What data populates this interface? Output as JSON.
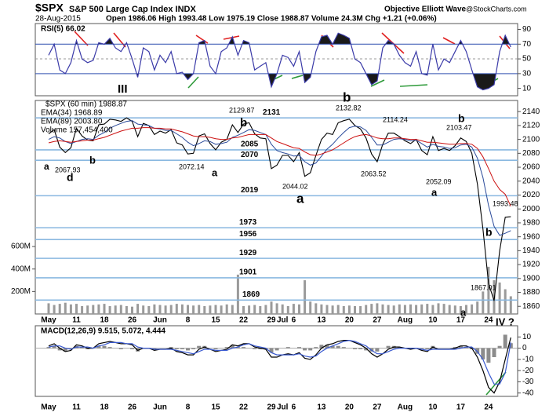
{
  "header": {
    "symbol": "$SPX",
    "name": "S&P 500 Large Cap Index INDX",
    "date": "28-Aug-2015",
    "ohlc": "Open 1986.06 High 1993.48 Low 1975.19 Close 1988.87 Volume 24.3M Chg +1.21 (+0.06%)",
    "author": "Objective Elliott Wave",
    "source": "@StockCharts.com"
  },
  "chart_data": [
    {
      "type": "line",
      "ylim": [
        0,
        98
      ],
      "yticks": [
        10,
        30,
        50,
        70,
        90
      ],
      "series": [
        {
          "name": "RSI(5) 66.02",
          "color": "#3a3aa8",
          "values": [
            55,
            70,
            35,
            30,
            45,
            75,
            50,
            45,
            48,
            72,
            70,
            78,
            65,
            60,
            72,
            50,
            25,
            65,
            60,
            35,
            55,
            45,
            60,
            30,
            32,
            22,
            30,
            72,
            75,
            40,
            30,
            60,
            65,
            80,
            55,
            75,
            72,
            35,
            40,
            45,
            12,
            30,
            55,
            52,
            40,
            60,
            18,
            25,
            60,
            80,
            82,
            70,
            85,
            82,
            78,
            50,
            45,
            30,
            15,
            20,
            65,
            75,
            70,
            55,
            45,
            40,
            60,
            30,
            28,
            70,
            35,
            50,
            45,
            60,
            75,
            60,
            35,
            12,
            8,
            10,
            15,
            60,
            82,
            66.02
          ]
        }
      ],
      "annotations": [
        {
          "text": "III",
          "color": "#2040c0"
        }
      ]
    },
    {
      "type": "line",
      "ylim": [
        1849,
        2156
      ],
      "yticks": [
        1860,
        1880,
        1900,
        1920,
        1940,
        1960,
        1980,
        2000,
        2020,
        2040,
        2060,
        2080,
        2100,
        2120,
        2140
      ],
      "y2lim": [
        0,
        1900000000
      ],
      "y2ticks": [
        {
          "value": 200000000,
          "label": "200M"
        },
        {
          "value": 400000000,
          "label": "400M"
        },
        {
          "value": 600000000,
          "label": "600M"
        }
      ],
      "categories": [
        "May",
        null,
        null,
        null,
        null,
        "11",
        null,
        null,
        null,
        null,
        "18",
        null,
        null,
        null,
        null,
        "26",
        null,
        null,
        null,
        null,
        "Jun",
        null,
        null,
        null,
        null,
        "8",
        null,
        null,
        null,
        null,
        "15",
        null,
        null,
        null,
        null,
        "22",
        null,
        null,
        null,
        null,
        "29",
        null,
        "Jul",
        null,
        "6",
        null,
        null,
        null,
        null,
        "13",
        null,
        null,
        null,
        null,
        "20",
        null,
        null,
        null,
        null,
        "27",
        null,
        null,
        null,
        null,
        "Aug",
        null,
        null,
        null,
        null,
        "10",
        null,
        null,
        null,
        null,
        "17",
        null,
        null,
        null,
        null,
        "24",
        null,
        null,
        null,
        null
      ],
      "series": [
        {
          "name": "$SPX (60 min) 1988.87",
          "color": "#000000",
          "values": [
            2108,
            2114,
            2089,
            2081,
            2088,
            2116,
            2105,
            2099,
            2098,
            2121,
            2122,
            2129,
            2128,
            2126,
            2131,
            2126,
            2104,
            2123,
            2120,
            2107,
            2112,
            2109,
            2114,
            2095,
            2092,
            2079,
            2080,
            2105,
            2108,
            2094,
            2085,
            2096,
            2100,
            2121,
            2110,
            2122,
            2124,
            2108,
            2102,
            2101,
            2058,
            2063,
            2077,
            2077,
            2068,
            2081,
            2047,
            2052,
            2077,
            2100,
            2109,
            2107,
            2124,
            2127,
            2129,
            2120,
            2115,
            2102,
            2079,
            2068,
            2093,
            2109,
            2109,
            2104,
            2098,
            2094,
            2100,
            2084,
            2078,
            2104,
            2084,
            2087,
            2084,
            2091,
            2102,
            2097,
            2080,
            2036,
            1971,
            1893,
            1868,
            1940,
            1988,
            1988.87
          ]
        },
        {
          "name": "EMA(34) 1968.89",
          "color": "#2a4a9a",
          "values": [
            2100,
            2104,
            2102,
            2097,
            2094,
            2097,
            2100,
            2101,
            2100,
            2106,
            2110,
            2116,
            2120,
            2123,
            2126,
            2127,
            2122,
            2121,
            2120,
            2116,
            2115,
            2113,
            2113,
            2108,
            2103,
            2096,
            2091,
            2094,
            2098,
            2097,
            2093,
            2094,
            2096,
            2103,
            2106,
            2110,
            2114,
            2113,
            2110,
            2107,
            2093,
            2084,
            2081,
            2079,
            2076,
            2077,
            2068,
            2063,
            2066,
            2076,
            2086,
            2093,
            2102,
            2110,
            2117,
            2119,
            2118,
            2113,
            2103,
            2092,
            2092,
            2096,
            2100,
            2101,
            2100,
            2098,
            2099,
            2094,
            2089,
            2093,
            2090,
            2089,
            2087,
            2088,
            2092,
            2093,
            2089,
            2073,
            2045,
            2005,
            1975,
            1962,
            1965,
            1968.89
          ]
        },
        {
          "name": "EMA(89) 2003.80",
          "color": "#cc1010",
          "values": [
            2095,
            2097,
            2098,
            2097,
            2096,
            2097,
            2098,
            2099,
            2099,
            2101,
            2103,
            2106,
            2109,
            2112,
            2114,
            2116,
            2116,
            2117,
            2117,
            2116,
            2116,
            2115,
            2115,
            2113,
            2111,
            2108,
            2105,
            2104,
            2104,
            2103,
            2101,
            2100,
            2100,
            2102,
            2103,
            2105,
            2107,
            2107,
            2107,
            2107,
            2102,
            2097,
            2094,
            2091,
            2088,
            2087,
            2082,
            2078,
            2077,
            2079,
            2082,
            2085,
            2090,
            2095,
            2100,
            2104,
            2106,
            2107,
            2105,
            2102,
            2101,
            2101,
            2102,
            2102,
            2101,
            2100,
            2100,
            2098,
            2096,
            2096,
            2095,
            2094,
            2093,
            2093,
            2094,
            2094,
            2093,
            2087,
            2075,
            2058,
            2040,
            2028,
            2021,
            2003.8
          ]
        },
        {
          "name": "Volume 157,454,400",
          "color": "#9a9a9a",
          "axis": "y2",
          "values": [
            95000000.0,
            80000000.0,
            90000000.0,
            100000000.0,
            85000000.0,
            90000000.0,
            70000000.0,
            75000000.0,
            80000000.0,
            85000000.0,
            90000000.0,
            70000000.0,
            75000000.0,
            80000000.0,
            70000000.0,
            65000000.0,
            90000000.0,
            75000000.0,
            70000000.0,
            85000000.0,
            80000000.0,
            75000000.0,
            80000000.0,
            90000000.0,
            85000000.0,
            80000000.0,
            75000000.0,
            80000000.0,
            70000000.0,
            75000000.0,
            80000000.0,
            75000000.0,
            85000000.0,
            80000000.0,
            350000000.0,
            70000000.0,
            75000000.0,
            80000000.0,
            70000000.0,
            80000000.0,
            110000000.0,
            95000000.0,
            85000000.0,
            70000000.0,
            90000000.0,
            85000000.0,
            300000000.0,
            110000000.0,
            95000000.0,
            85000000.0,
            80000000.0,
            75000000.0,
            80000000.0,
            70000000.0,
            75000000.0,
            70000000.0,
            70000000.0,
            80000000.0,
            90000000.0,
            95000000.0,
            85000000.0,
            80000000.0,
            75000000.0,
            85000000.0,
            80000000.0,
            85000000.0,
            80000000.0,
            85000000.0,
            90000000.0,
            80000000.0,
            95000000.0,
            90000000.0,
            80000000.0,
            75000000.0,
            70000000.0,
            80000000.0,
            85000000.0,
            110000000.0,
            200000000.0,
            420000000.0,
            300000000.0,
            280000000.0,
            220000000.0,
            157454400
          ]
        }
      ],
      "levels": [
        2131,
        2085,
        2070,
        2019,
        1973,
        1956,
        1929,
        1901,
        1869
      ],
      "level_color": "#8ab8e0",
      "annotations": [
        {
          "text": "a",
          "color": "#2e8a3a"
        },
        {
          "text": "2067.93",
          "color": "#000000"
        },
        {
          "text": "d",
          "color": "#1a2a80"
        },
        {
          "text": "b",
          "color": "#2a8a8a"
        },
        {
          "text": "2072.14",
          "color": "#000000"
        },
        {
          "text": "a",
          "color": "#8b0000"
        },
        {
          "text": "b",
          "color": "#8b0000"
        },
        {
          "text": "2129.87",
          "color": "#000000"
        },
        {
          "text": "2044.02",
          "color": "#000000"
        },
        {
          "text": "a",
          "color": "#000000"
        },
        {
          "text": "b",
          "color": "#000000"
        },
        {
          "text": "2132.82",
          "color": "#000000"
        },
        {
          "text": "2063.52",
          "color": "#000000"
        },
        {
          "text": "2114.24",
          "color": "#000000"
        },
        {
          "text": "b",
          "color": "#8b0000"
        },
        {
          "text": "2103.47",
          "color": "#000000"
        },
        {
          "text": "2052.09",
          "color": "#000000"
        },
        {
          "text": "a",
          "color": "#8b0000"
        },
        {
          "text": "1993.48",
          "color": "#000000"
        },
        {
          "text": "b",
          "color": "#1a2a80"
        },
        {
          "text": "1867.01",
          "color": "#000000"
        },
        {
          "text": "a",
          "color": "#1a2a80"
        }
      ]
    },
    {
      "type": "line",
      "title": "MACD(12,26,9) 9.515, 5.072, 4.444",
      "ylim": [
        -43,
        20
      ],
      "yticks": [
        10,
        0,
        -10,
        -20,
        -30,
        -40
      ],
      "series": [
        {
          "color": "#000000",
          "values": [
            2,
            4,
            0,
            -3,
            -2,
            3,
            2,
            0,
            0,
            4,
            5,
            6,
            5,
            4,
            4,
            3,
            -2,
            0,
            0,
            -2,
            -1,
            -1,
            0,
            -3,
            -4,
            -6,
            -6,
            -1,
            1,
            -1,
            -3,
            -2,
            -1,
            3,
            2,
            4,
            4,
            1,
            0,
            -1,
            -8,
            -8,
            -6,
            -5,
            -6,
            -4,
            -9,
            -10,
            -6,
            0,
            3,
            4,
            6,
            7,
            7,
            5,
            3,
            0,
            -5,
            -8,
            -5,
            -1,
            1,
            1,
            0,
            -1,
            0,
            -2,
            -3,
            1,
            -1,
            -1,
            -1,
            0,
            2,
            2,
            0,
            -8,
            -20,
            -35,
            -40,
            -30,
            -10,
            9.515
          ]
        },
        {
          "color": "#3a5ad0",
          "values": [
            1,
            2,
            2,
            0,
            -1,
            1,
            1,
            1,
            0,
            2,
            3,
            5,
            5,
            5,
            4,
            4,
            1,
            0,
            0,
            -1,
            -1,
            -1,
            -1,
            -2,
            -3,
            -4,
            -5,
            -3,
            -1,
            -1,
            -2,
            -2,
            -2,
            0,
            1,
            3,
            4,
            2,
            1,
            0,
            -4,
            -6,
            -6,
            -6,
            -6,
            -5,
            -7,
            -8,
            -7,
            -3,
            0,
            2,
            4,
            6,
            7,
            6,
            4,
            2,
            -2,
            -5,
            -5,
            -3,
            -1,
            0,
            0,
            0,
            0,
            -1,
            -2,
            -1,
            -1,
            -1,
            -1,
            -1,
            0,
            1,
            1,
            -3,
            -10,
            -22,
            -32,
            -32,
            -22,
            5.072
          ]
        },
        {
          "type": "bar",
          "color": "#8c8c8c",
          "values": [
            1,
            2,
            -2,
            -3,
            -1,
            2,
            1,
            -1,
            0,
            2,
            2,
            1,
            0,
            -1,
            0,
            -1,
            -3,
            0,
            0,
            -1,
            0,
            0,
            1,
            -1,
            -1,
            -2,
            -1,
            2,
            2,
            0,
            -1,
            0,
            1,
            3,
            1,
            1,
            0,
            -1,
            -1,
            -1,
            -4,
            -2,
            0,
            1,
            0,
            1,
            -2,
            -2,
            1,
            3,
            3,
            2,
            2,
            1,
            0,
            -1,
            -1,
            -2,
            -3,
            -3,
            0,
            2,
            2,
            1,
            0,
            -1,
            0,
            -1,
            -1,
            2,
            0,
            0,
            0,
            1,
            2,
            1,
            -1,
            -5,
            -10,
            -13,
            -8,
            2,
            12,
            4.444
          ]
        }
      ],
      "annotations": [
        {
          "text": "IV ?",
          "color": "#3a9a3a"
        }
      ]
    }
  ]
}
